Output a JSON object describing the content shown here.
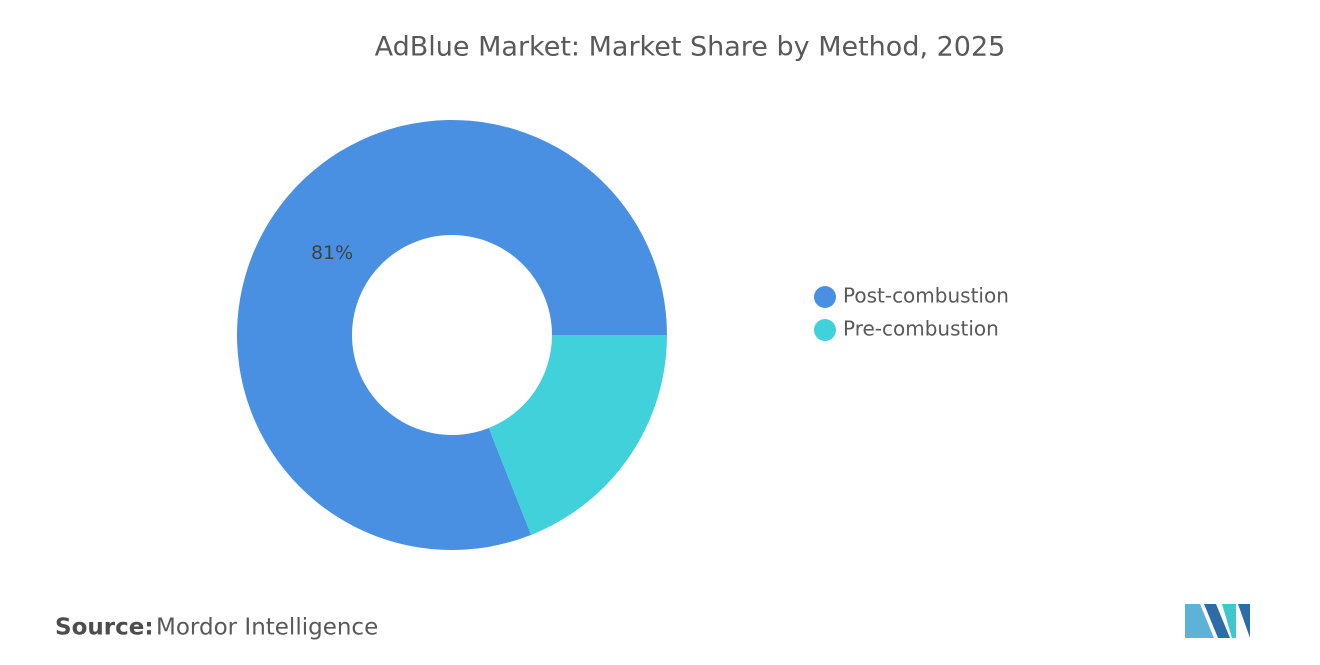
{
  "chart_data": {
    "type": "donut",
    "title": "AdBlue Market: Market Share by Method, 2025",
    "categories": [
      "Post-combustion",
      "Pre-combustion"
    ],
    "values": [
      81,
      19
    ],
    "value_labels": [
      "81%",
      null
    ],
    "colors": [
      "#4a90e2",
      "#41d1da"
    ],
    "source_label": "Source:",
    "source": "Mordor Intelligence"
  }
}
